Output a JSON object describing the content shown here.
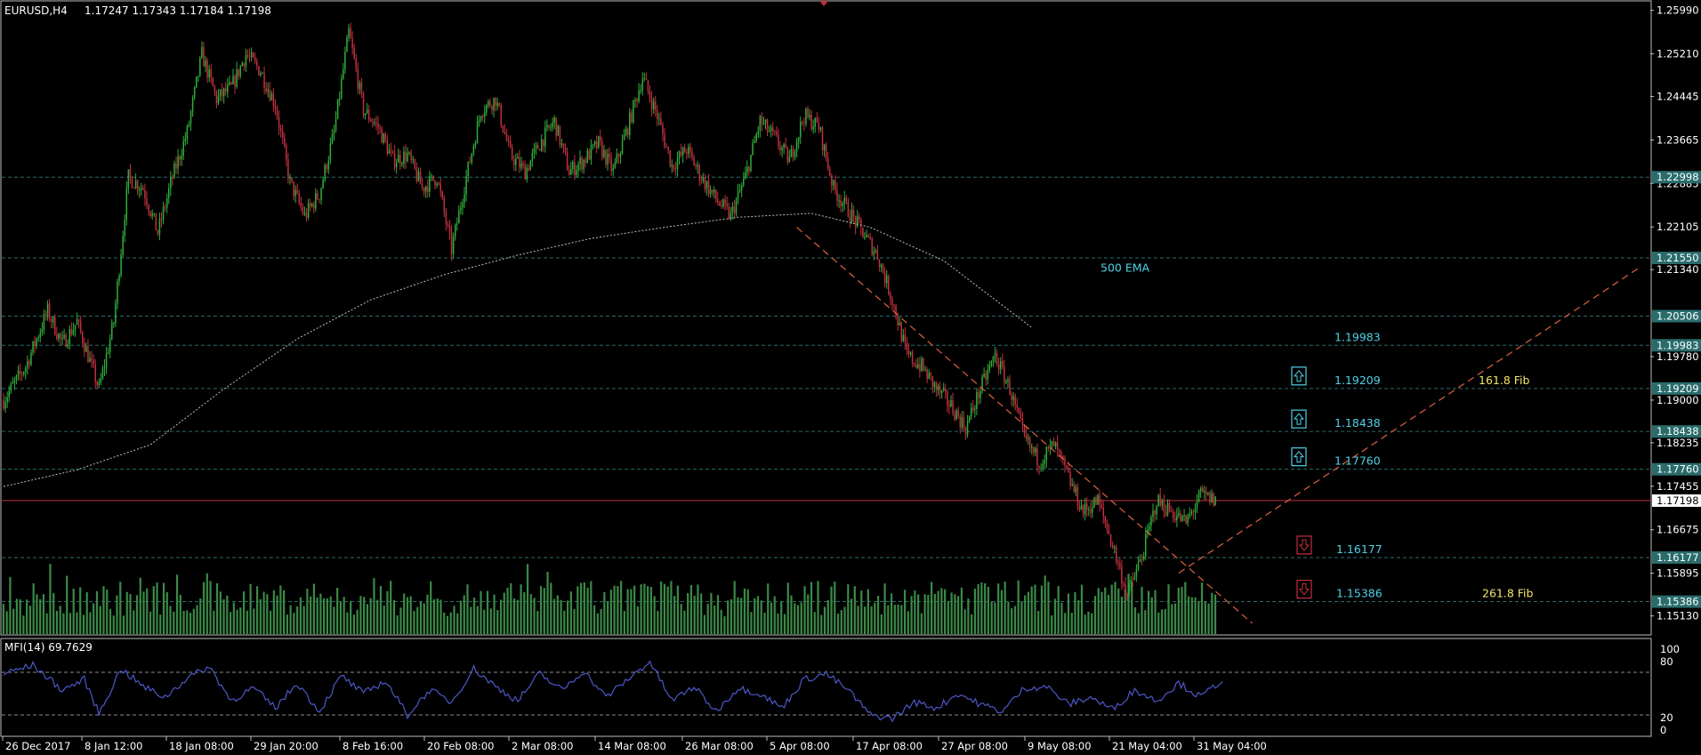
{
  "window": {
    "symbol_title": "EURUSD,H4",
    "ohlc": "1.17247 1.17343 1.17184 1.17198",
    "indicator_title": "MFI(14) 69.7629"
  },
  "colors": {
    "background": "#000000",
    "bull_candle": "#2fae3a",
    "bear_candle": "#c0303f",
    "volume": "#3a8a46",
    "level_line": "#2a6c6c",
    "price_line": "#c0303f",
    "trend_line": "#e0603c",
    "ema": "#bfbfbf",
    "mfi_line": "#4d58c8",
    "cyan_text": "#4fd1e6",
    "fib_text": "#f2e66a"
  },
  "chart_data": [
    {
      "type": "candlestick",
      "title": "EURUSD,H4",
      "ylim": [
        1.1498,
        1.2608
      ],
      "y_ticks": [
        "1.25990",
        "1.25210",
        "1.24445",
        "1.23665",
        "1.22885",
        "1.22105",
        "1.21340",
        "1.19780",
        "1.19000",
        "1.18235",
        "1.17455",
        "1.16675",
        "1.15895",
        "1.15130"
      ],
      "x_tick_labels": [
        "26 Dec 2017",
        "8 Jan 12:00",
        "18 Jan 08:00",
        "29 Jan 20:00",
        "8 Feb 16:00",
        "20 Feb 08:00",
        "2 Mar 08:00",
        "14 Mar 08:00",
        "26 Mar 08:00",
        "5 Apr 08:00",
        "17 Apr 08:00",
        "27 Apr 08:00",
        "9 May 08:00",
        "21 May 04:00",
        "31 May 04:00"
      ],
      "price_path": [
        [
          0,
          1.19
        ],
        [
          3,
          1.196
        ],
        [
          6,
          1.206
        ],
        [
          8,
          1.2
        ],
        [
          10,
          1.204
        ],
        [
          13,
          1.192
        ],
        [
          15,
          1.204
        ],
        [
          17,
          1.23
        ],
        [
          19,
          1.228
        ],
        [
          21,
          1.22
        ],
        [
          23,
          1.23
        ],
        [
          25,
          1.238
        ],
        [
          27,
          1.252
        ],
        [
          29,
          1.244
        ],
        [
          31,
          1.246
        ],
        [
          33,
          1.252
        ],
        [
          35,
          1.249
        ],
        [
          37,
          1.243
        ],
        [
          39,
          1.229
        ],
        [
          41,
          1.223
        ],
        [
          43,
          1.227
        ],
        [
          45,
          1.238
        ],
        [
          47,
          1.256
        ],
        [
          49,
          1.242
        ],
        [
          51,
          1.239
        ],
        [
          53,
          1.233
        ],
        [
          55,
          1.234
        ],
        [
          57,
          1.228
        ],
        [
          59,
          1.23
        ],
        [
          61,
          1.217
        ],
        [
          63,
          1.23
        ],
        [
          65,
          1.242
        ],
        [
          67,
          1.244
        ],
        [
          69,
          1.234
        ],
        [
          71,
          1.231
        ],
        [
          73,
          1.236
        ],
        [
          75,
          1.24
        ],
        [
          77,
          1.231
        ],
        [
          79,
          1.233
        ],
        [
          81,
          1.236
        ],
        [
          83,
          1.231
        ],
        [
          85,
          1.239
        ],
        [
          87,
          1.248
        ],
        [
          89,
          1.241
        ],
        [
          91,
          1.232
        ],
        [
          93,
          1.235
        ],
        [
          95,
          1.23
        ],
        [
          97,
          1.226
        ],
        [
          99,
          1.223
        ],
        [
          101,
          1.23
        ],
        [
          103,
          1.24
        ],
        [
          105,
          1.237
        ],
        [
          107,
          1.233
        ],
        [
          109,
          1.241
        ],
        [
          111,
          1.239
        ],
        [
          113,
          1.228
        ],
        [
          115,
          1.224
        ],
        [
          117,
          1.22
        ],
        [
          119,
          1.216
        ],
        [
          121,
          1.208
        ],
        [
          123,
          1.198
        ],
        [
          125,
          1.196
        ],
        [
          127,
          1.192
        ],
        [
          129,
          1.189
        ],
        [
          131,
          1.185
        ],
        [
          133,
          1.192
        ],
        [
          135,
          1.198
        ],
        [
          137,
          1.192
        ],
        [
          139,
          1.183
        ],
        [
          141,
          1.179
        ],
        [
          143,
          1.182
        ],
        [
          145,
          1.176
        ],
        [
          147,
          1.17
        ],
        [
          149,
          1.172
        ],
        [
          151,
          1.164
        ],
        [
          153,
          1.155
        ],
        [
          155,
          1.162
        ],
        [
          157,
          1.172
        ],
        [
          159,
          1.17
        ],
        [
          161,
          1.168
        ],
        [
          163,
          1.173
        ],
        [
          165,
          1.172
        ]
      ],
      "ema_500": {
        "label": "500 EMA",
        "path": [
          [
            0,
            1.1745
          ],
          [
            10,
            1.1775
          ],
          [
            20,
            1.182
          ],
          [
            30,
            1.192
          ],
          [
            40,
            1.201
          ],
          [
            50,
            1.208
          ],
          [
            60,
            1.2125
          ],
          [
            70,
            1.216
          ],
          [
            80,
            1.219
          ],
          [
            90,
            1.221
          ],
          [
            100,
            1.2228
          ],
          [
            110,
            1.2235
          ],
          [
            118,
            1.221
          ],
          [
            128,
            1.215
          ],
          [
            136,
            1.207
          ],
          [
            140,
            1.203
          ]
        ]
      },
      "horizontal_levels": [
        {
          "label": "1.22998",
          "value": 1.22998
        },
        {
          "label": "1.21550",
          "value": 1.2155
        },
        {
          "label": "1.20506",
          "value": 1.20506
        },
        {
          "label": "1.19983",
          "value": 1.19983
        },
        {
          "label": "1.19209",
          "value": 1.19209
        },
        {
          "label": "1.18438",
          "value": 1.18438
        },
        {
          "label": "1.17760",
          "value": 1.1776
        },
        {
          "label": "1.16177",
          "value": 1.16177
        },
        {
          "label": "1.15386",
          "value": 1.15386
        }
      ],
      "current_price": {
        "label": "1.17198",
        "value": 1.17198
      },
      "annotations": [
        {
          "text": "1.19983",
          "value": 1.19983,
          "color": "cyan"
        },
        {
          "text": "1.19209",
          "value": 1.19209,
          "color": "cyan",
          "marker": "up-arrow"
        },
        {
          "text": "1.18438",
          "value": 1.18438,
          "color": "cyan",
          "marker": "up-arrow"
        },
        {
          "text": "1.17760",
          "value": 1.1776,
          "color": "cyan",
          "marker": "up-arrow"
        },
        {
          "text": "1.16177",
          "value": 1.16177,
          "color": "cyan",
          "marker": "down-arrow"
        },
        {
          "text": "1.15386",
          "value": 1.15386,
          "color": "cyan",
          "marker": "down-arrow"
        },
        {
          "text": "161.8 Fib",
          "value": 1.19209,
          "color": "yellow"
        },
        {
          "text": "261.8 Fib",
          "value": 1.15386,
          "color": "yellow"
        }
      ],
      "trend_lines": [
        {
          "from": [
            108,
            1.221
          ],
          "to": [
            170,
            1.15
          ]
        },
        {
          "from": [
            160,
            1.159
          ],
          "to": [
            223,
            1.214
          ]
        }
      ]
    },
    {
      "type": "area",
      "title": "MFI(14) 69.7629",
      "ylim": [
        0,
        100
      ],
      "y_ticks": [
        "100",
        "80",
        "20",
        "0"
      ],
      "levels": [
        80,
        20
      ],
      "path": [
        [
          0,
          78
        ],
        [
          4,
          90
        ],
        [
          8,
          55
        ],
        [
          11,
          70
        ],
        [
          13,
          22
        ],
        [
          16,
          85
        ],
        [
          19,
          60
        ],
        [
          22,
          45
        ],
        [
          25,
          72
        ],
        [
          28,
          88
        ],
        [
          31,
          40
        ],
        [
          34,
          58
        ],
        [
          37,
          30
        ],
        [
          40,
          65
        ],
        [
          43,
          25
        ],
        [
          46,
          75
        ],
        [
          49,
          50
        ],
        [
          52,
          68
        ],
        [
          55,
          20
        ],
        [
          58,
          55
        ],
        [
          61,
          38
        ],
        [
          64,
          85
        ],
        [
          67,
          60
        ],
        [
          70,
          40
        ],
        [
          73,
          78
        ],
        [
          76,
          55
        ],
        [
          79,
          82
        ],
        [
          82,
          45
        ],
        [
          85,
          70
        ],
        [
          88,
          95
        ],
        [
          91,
          40
        ],
        [
          94,
          60
        ],
        [
          97,
          25
        ],
        [
          100,
          58
        ],
        [
          103,
          50
        ],
        [
          106,
          30
        ],
        [
          109,
          70
        ],
        [
          112,
          78
        ],
        [
          115,
          55
        ],
        [
          118,
          20
        ],
        [
          121,
          15
        ],
        [
          124,
          38
        ],
        [
          127,
          30
        ],
        [
          130,
          50
        ],
        [
          133,
          35
        ],
        [
          136,
          25
        ],
        [
          139,
          58
        ],
        [
          142,
          60
        ],
        [
          145,
          35
        ],
        [
          148,
          45
        ],
        [
          151,
          28
        ],
        [
          154,
          55
        ],
        [
          157,
          40
        ],
        [
          160,
          65
        ],
        [
          163,
          45
        ],
        [
          166,
          70
        ]
      ]
    }
  ]
}
